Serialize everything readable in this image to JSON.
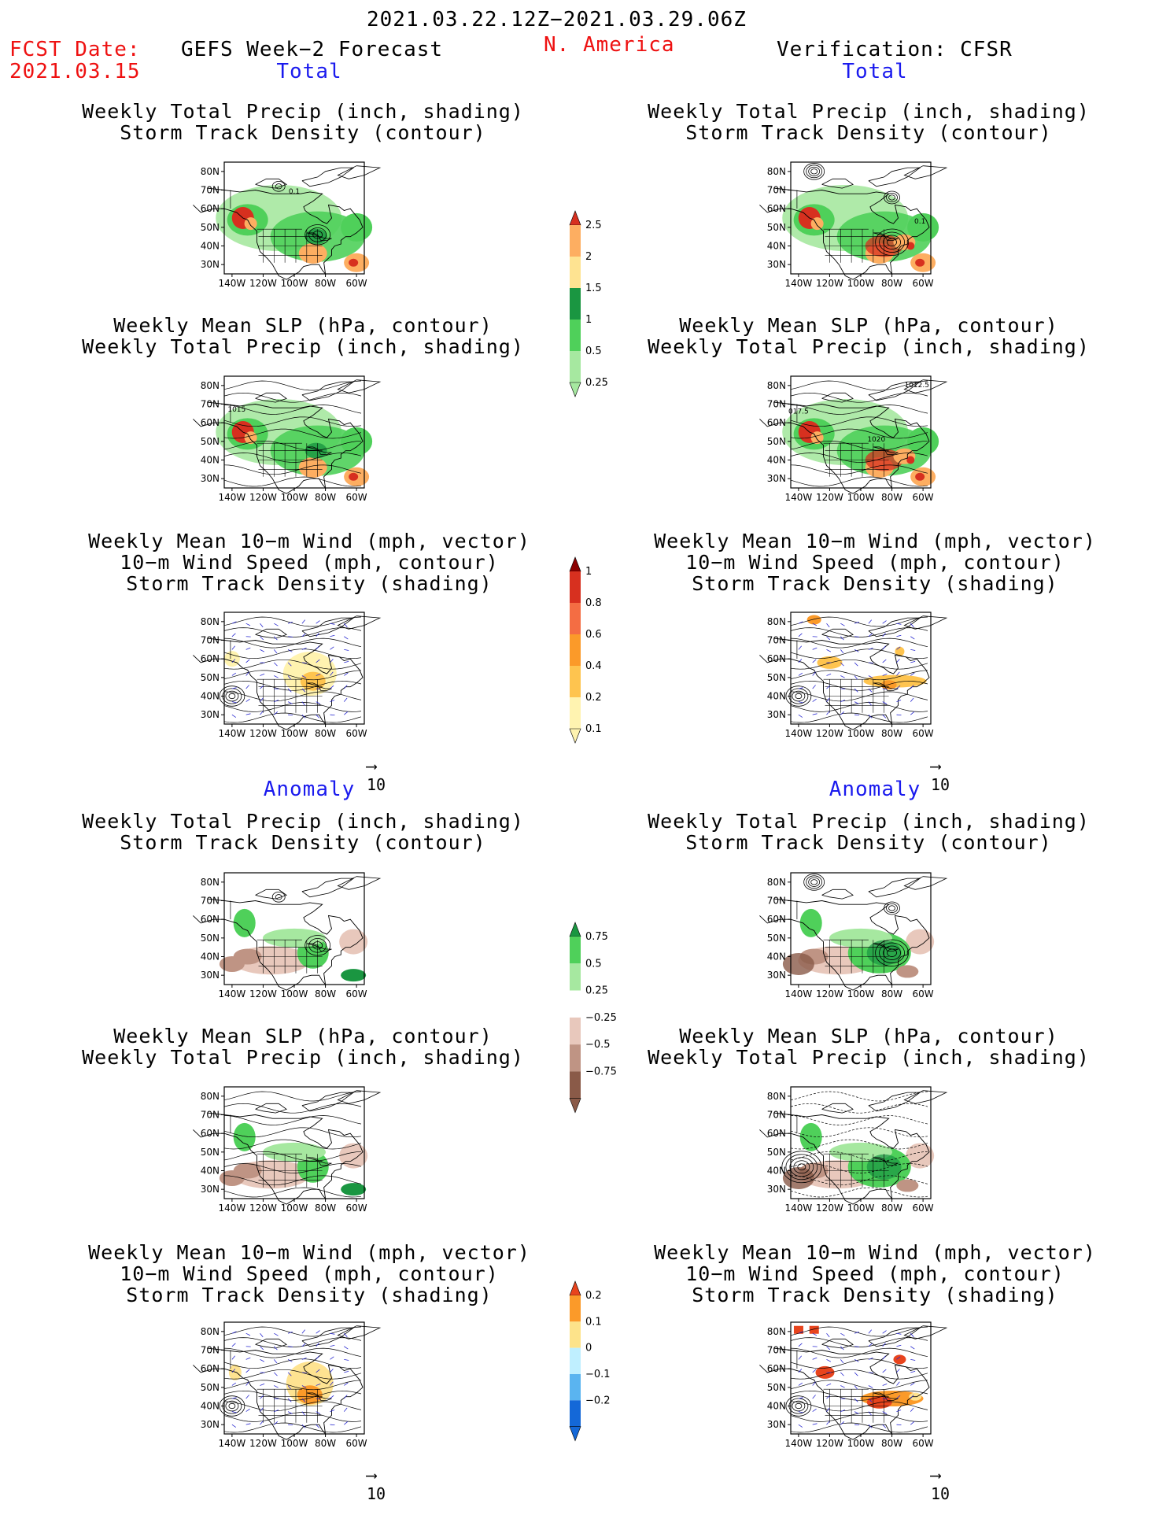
{
  "header": {
    "date_range": "2021.03.22.12Z−2021.03.29.06Z",
    "fcst_label": "FCST Date:",
    "fcst_date": "2021.03.15",
    "forecast_title": "GEFS Week−2 Forecast",
    "region": "N. America",
    "verification": "Verification: CFSR"
  },
  "sections": {
    "total": "Total",
    "anomaly": "Anomaly"
  },
  "titles": {
    "precip_track": [
      "Weekly Total Precip (inch, shading)",
      "Storm Track Density (contour)"
    ],
    "slp_precip": [
      "Weekly Mean SLP (hPa, contour)",
      "Weekly Total Precip (inch, shading)"
    ],
    "wind_track": [
      "Weekly Mean 10−m Wind (mph, vector)",
      "10−m Wind Speed (mph, contour)",
      "Storm Track Density (shading)"
    ]
  },
  "axes": {
    "lat_ticks": [
      "80N",
      "70N",
      "60N",
      "50N",
      "40N",
      "30N"
    ],
    "lon_ticks": [
      "140W",
      "120W",
      "100W",
      "80W",
      "60W"
    ]
  },
  "vector_scale": "10",
  "contour_labels": {
    "left_precip": "0.1",
    "left_slp": "1015",
    "right_precip": "0.1",
    "right_slp": [
      "1012.5",
      "017.5",
      "1020"
    ]
  },
  "colorbars": {
    "precip_total": {
      "labels": [
        "2.5",
        "2",
        "1.5",
        "1",
        "0.5",
        "0.25"
      ],
      "colors": [
        "#d7301f",
        "#fdae61",
        "#fee391",
        "#1a9641",
        "#4fd05a",
        "#a6e8a0"
      ]
    },
    "track_total": {
      "labels": [
        "1",
        "0.8",
        "0.6",
        "0.4",
        "0.2",
        "0.1"
      ],
      "colors": [
        "#8b0000",
        "#d7301f",
        "#f46d43",
        "#fb9a29",
        "#fec44f",
        "#fff3b0"
      ]
    },
    "precip_anom": {
      "labels": [
        "0.75",
        "0.5",
        "0.25",
        "−0.25",
        "−0.5",
        "−0.75"
      ],
      "colors": [
        "#1a9641",
        "#4fd05a",
        "#a6e8a0",
        "#ffffff",
        "#e8c8bc",
        "#bf9484",
        "#8a5a48"
      ]
    },
    "track_anom": {
      "labels": [
        "0.2",
        "0.1",
        "0",
        "−0.1",
        "−0.2"
      ],
      "colors": [
        "#e8441d",
        "#fb9a29",
        "#fde38a",
        "#bfefff",
        "#5ab4f0",
        "#1468d8"
      ]
    }
  }
}
